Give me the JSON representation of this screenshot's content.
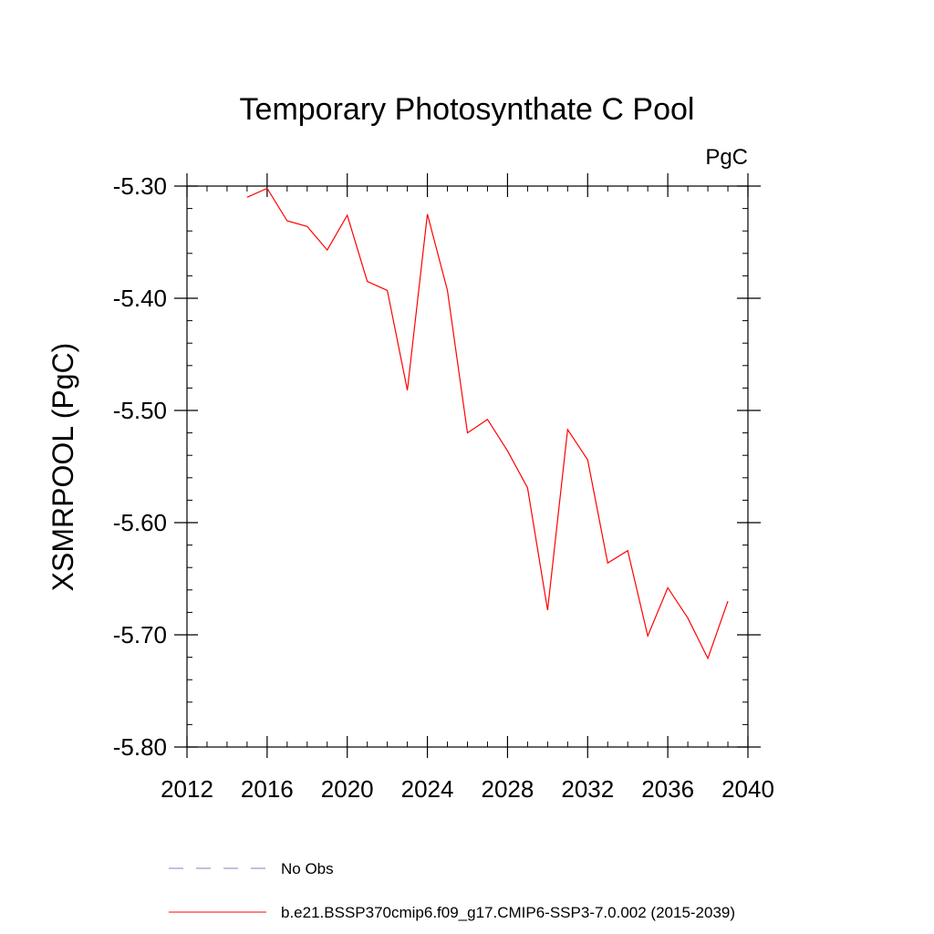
{
  "chart_data": {
    "type": "line",
    "title": "Temporary Photosynthate C Pool",
    "units_label": "PgC",
    "ylabel": "XSMRPOOL  (PgC)",
    "xlabel": "",
    "xlim": [
      2012,
      2040
    ],
    "ylim": [
      -5.8,
      -5.3
    ],
    "x_ticks": [
      2012,
      2016,
      2020,
      2024,
      2028,
      2032,
      2036,
      2040
    ],
    "x_tick_labels": [
      "2012",
      "2016",
      "2020",
      "2024",
      "2028",
      "2032",
      "2036",
      "2040"
    ],
    "y_ticks": [
      -5.3,
      -5.4,
      -5.5,
      -5.6,
      -5.7,
      -5.8
    ],
    "y_tick_labels": [
      "-5.30",
      "-5.40",
      "-5.50",
      "-5.60",
      "-5.70",
      "-5.80"
    ],
    "grid": false,
    "legend_position": "bottom",
    "series": [
      {
        "name": "b.e21.BSSP370cmip6.f09_g17.CMIP6-SSP3-7.0.002 (2015-2039)",
        "color": "#ff0000",
        "style": "solid",
        "x": [
          2015,
          2016,
          2017,
          2018,
          2019,
          2020,
          2021,
          2022,
          2023,
          2024,
          2025,
          2026,
          2027,
          2028,
          2029,
          2030,
          2031,
          2032,
          2033,
          2034,
          2035,
          2036,
          2037,
          2038,
          2039
        ],
        "values": [
          -5.31,
          -5.302,
          -5.331,
          -5.336,
          -5.357,
          -5.326,
          -5.385,
          -5.393,
          -5.482,
          -5.325,
          -5.393,
          -5.52,
          -5.508,
          -5.536,
          -5.569,
          -5.678,
          -5.517,
          -5.544,
          -5.636,
          -5.625,
          -5.701,
          -5.658,
          -5.685,
          -5.721,
          -5.67
        ]
      }
    ],
    "legend": [
      {
        "label": "No Obs",
        "color": "#8080c0",
        "style": "dashed"
      },
      {
        "label": "b.e21.BSSP370cmip6.f09_g17.CMIP6-SSP3-7.0.002 (2015-2039)",
        "color": "#ff0000",
        "style": "solid"
      }
    ]
  }
}
